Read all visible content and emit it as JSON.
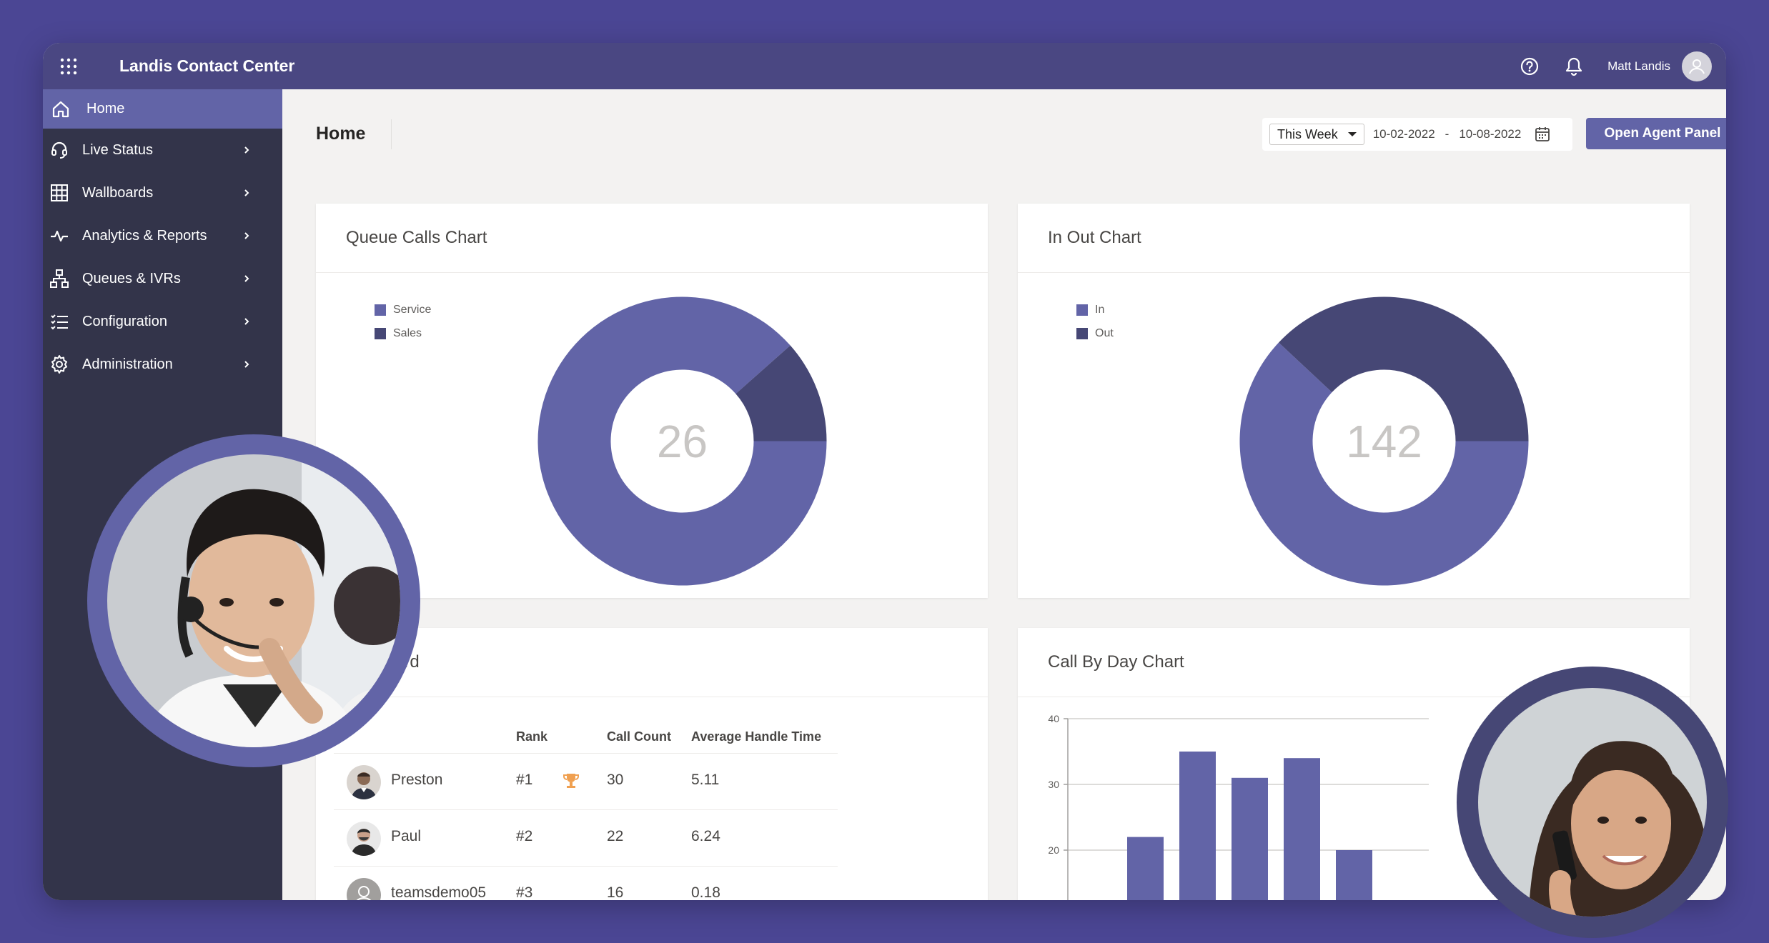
{
  "app": {
    "title": "Landis Contact Center"
  },
  "topbar": {
    "user_name": "Matt Landis"
  },
  "sidebar": {
    "items": [
      {
        "label": "Home",
        "icon": "home-icon",
        "active": true
      },
      {
        "label": "Live Status",
        "icon": "headset-icon"
      },
      {
        "label": "Wallboards",
        "icon": "grid-icon"
      },
      {
        "label": "Analytics & Reports",
        "icon": "pulse-icon"
      },
      {
        "label": "Queues & IVRs",
        "icon": "org-chart-icon"
      },
      {
        "label": "Configuration",
        "icon": "checklist-icon"
      },
      {
        "label": "Administration",
        "icon": "gear-icon"
      }
    ]
  },
  "header": {
    "page_title": "Home",
    "range_select": "This Week",
    "date_from": "10-02-2022",
    "date_sep": "-",
    "date_to": "10-08-2022",
    "agent_button": "Open Agent Panel"
  },
  "queue_chart": {
    "title": "Queue Calls Chart",
    "total": "26",
    "legend": [
      {
        "name": "Service",
        "color": "#6264a7"
      },
      {
        "name": "Sales",
        "color": "#464775"
      }
    ]
  },
  "inout_chart": {
    "title": "In Out Chart",
    "total": "142",
    "legend": [
      {
        "name": "In",
        "color": "#6264a7"
      },
      {
        "name": "Out",
        "color": "#464775"
      }
    ]
  },
  "leaderboard": {
    "title_visible": "ard",
    "columns": {
      "rank": "Rank",
      "count": "Call Count",
      "aht": "Average Handle Time"
    },
    "rows": [
      {
        "name": "Preston",
        "rank": "#1",
        "count": "30",
        "aht": "5.11",
        "trophy": true
      },
      {
        "name": "Paul",
        "rank": "#2",
        "count": "22",
        "aht": "6.24"
      },
      {
        "name": "teamsdemo05",
        "rank": "#3",
        "count": "16",
        "aht": "0.18"
      }
    ]
  },
  "day_chart": {
    "title": "Call By Day Chart"
  },
  "chart_data": [
    {
      "type": "pie",
      "title": "Queue Calls Chart",
      "labels": [
        "Service",
        "Sales"
      ],
      "values": [
        23,
        3
      ],
      "center_label": "26"
    },
    {
      "type": "pie",
      "title": "In Out Chart",
      "labels": [
        "In",
        "Out"
      ],
      "values": [
        88,
        54
      ],
      "center_label": "142"
    },
    {
      "type": "bar",
      "title": "Call By Day Chart",
      "categories": [
        "",
        "",
        "",
        "",
        ""
      ],
      "values": [
        22,
        35,
        31,
        34,
        20
      ],
      "ylim": [
        0,
        40
      ],
      "yticks": [
        10,
        20,
        30,
        40
      ],
      "color": "#6264a7",
      "grid": true
    }
  ],
  "colors": {
    "accent": "#6264a7",
    "dark_accent": "#464775",
    "sidebar": "#33344a",
    "topbar": "#4a4782",
    "background": "#4b4694"
  }
}
